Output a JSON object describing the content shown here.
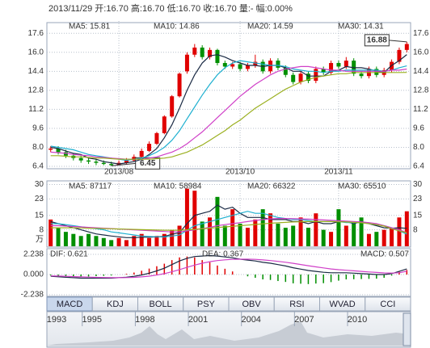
{
  "header": "2013/11/29 开:16.70 高:16.70 低:16.70 收:16.70 量:- 幅:0.00%",
  "chart_data": [
    {
      "type": "candlestick",
      "categories": [
        null,
        null,
        null,
        null,
        null,
        null,
        null,
        null,
        null,
        "2013/08",
        null,
        null,
        null,
        null,
        null,
        null,
        null,
        null,
        null,
        null,
        null,
        null,
        null,
        null,
        null,
        "2013/10",
        null,
        null,
        null,
        null,
        null,
        null,
        null,
        null,
        null,
        null,
        null,
        null,
        "2013/11",
        null,
        null,
        null,
        null,
        null,
        null,
        null,
        null,
        null
      ],
      "open": [
        7.8,
        7.9,
        7.6,
        7.3,
        7.1,
        6.9,
        6.8,
        6.7,
        6.6,
        6.5,
        6.7,
        6.9,
        7.2,
        7.7,
        8.3,
        9.2,
        10.6,
        12.3,
        14.4,
        15.8,
        16.4,
        15.6,
        16.2,
        15.1,
        14.8,
        15.0,
        14.6,
        14.9,
        15.2,
        14.4,
        15.3,
        14.7,
        14.1,
        13.5,
        14.2,
        13.6,
        14.6,
        14.3,
        15.1,
        14.8,
        15.3,
        14.2,
        14.0,
        14.6,
        14.1,
        14.5,
        15.2,
        16.2
      ],
      "high": [
        8.1,
        8.1,
        7.8,
        7.5,
        7.3,
        7.1,
        7.0,
        6.9,
        6.8,
        6.9,
        7.1,
        7.4,
        7.9,
        8.5,
        9.3,
        10.7,
        12.4,
        14.3,
        16.0,
        16.7,
        16.6,
        16.4,
        16.3,
        15.3,
        15.2,
        15.2,
        15.1,
        15.8,
        15.4,
        15.5,
        15.5,
        14.9,
        14.3,
        14.4,
        14.4,
        14.8,
        14.8,
        15.3,
        15.3,
        15.6,
        15.5,
        14.4,
        14.8,
        14.8,
        14.7,
        15.4,
        16.4,
        16.88
      ],
      "low": [
        7.6,
        7.4,
        7.1,
        6.9,
        6.7,
        6.6,
        6.5,
        6.5,
        6.45,
        6.5,
        6.6,
        6.8,
        7.1,
        7.6,
        8.2,
        9.1,
        10.5,
        12.2,
        14.2,
        15.6,
        15.4,
        15.4,
        14.9,
        14.6,
        14.6,
        14.4,
        14.4,
        14.7,
        14.2,
        14.2,
        14.5,
        13.9,
        13.3,
        13.3,
        13.4,
        13.4,
        14.1,
        14.1,
        14.6,
        14.6,
        14.0,
        13.8,
        13.8,
        13.9,
        13.9,
        14.3,
        15.0,
        16.0
      ],
      "close": [
        7.9,
        7.6,
        7.3,
        7.1,
        6.9,
        6.8,
        6.7,
        6.6,
        6.5,
        6.7,
        6.9,
        7.2,
        7.7,
        8.3,
        9.2,
        10.6,
        12.3,
        14.2,
        15.8,
        16.4,
        15.6,
        16.2,
        15.1,
        14.8,
        15.0,
        14.6,
        14.9,
        15.2,
        14.4,
        15.3,
        14.7,
        14.1,
        13.5,
        14.2,
        13.6,
        14.6,
        14.3,
        15.1,
        14.8,
        15.3,
        14.2,
        14.0,
        14.6,
        14.1,
        14.5,
        15.2,
        16.2,
        16.7
      ],
      "up_color": "#e00000",
      "down_color": "#008f00",
      "tick_color": "#cc0000",
      "series": [
        {
          "name": "MA5: 15.81",
          "color": "#1a2a44",
          "values": [
            8.0,
            7.9,
            7.7,
            7.5,
            7.4,
            7.1,
            7.0,
            6.8,
            6.7,
            6.6,
            6.7,
            6.8,
            7.0,
            7.4,
            7.9,
            8.8,
            9.9,
            11.3,
            12.8,
            14.1,
            15.1,
            15.7,
            15.8,
            15.6,
            15.3,
            15.1,
            14.9,
            14.9,
            14.8,
            14.9,
            14.9,
            14.7,
            14.4,
            14.4,
            14.0,
            14.0,
            14.0,
            14.4,
            14.5,
            14.8,
            14.7,
            14.7,
            14.6,
            14.4,
            14.3,
            14.9,
            15.3,
            15.81
          ]
        },
        {
          "name": "MA10: 14.86",
          "color": "#1fb0d0",
          "values": [
            8.1,
            8.0,
            7.9,
            7.8,
            7.6,
            7.4,
            7.3,
            7.2,
            7.1,
            7.0,
            6.9,
            7.0,
            7.1,
            7.3,
            7.6,
            8.0,
            8.6,
            9.4,
            10.4,
            11.4,
            12.4,
            13.3,
            14.1,
            14.7,
            15.1,
            15.3,
            15.2,
            15.1,
            15.0,
            14.9,
            14.9,
            14.8,
            14.6,
            14.5,
            14.4,
            14.4,
            14.3,
            14.4,
            14.4,
            14.5,
            14.5,
            14.5,
            14.5,
            14.5,
            14.4,
            14.5,
            14.7,
            14.86
          ]
        },
        {
          "name": "MA20: 14.59",
          "color": "#d040c8",
          "values": [
            7.6,
            7.55,
            7.5,
            7.4,
            7.35,
            7.3,
            7.2,
            7.15,
            7.1,
            7.05,
            7.0,
            7.0,
            7.0,
            7.1,
            7.2,
            7.4,
            7.6,
            7.9,
            8.3,
            8.8,
            9.3,
            9.9,
            10.5,
            11.1,
            11.7,
            12.3,
            12.8,
            13.3,
            13.7,
            14.1,
            14.4,
            14.6,
            14.7,
            14.8,
            14.8,
            14.7,
            14.6,
            14.5,
            14.5,
            14.4,
            14.4,
            14.4,
            14.4,
            14.4,
            14.4,
            14.5,
            14.5,
            14.59
          ]
        },
        {
          "name": "MA30: 14.31",
          "color": "#9bb020",
          "values": [
            7.3,
            7.3,
            7.25,
            7.2,
            7.2,
            7.15,
            7.1,
            7.1,
            7.05,
            7.0,
            7.0,
            7.0,
            7.0,
            7.0,
            7.05,
            7.1,
            7.2,
            7.4,
            7.6,
            7.9,
            8.2,
            8.6,
            9.0,
            9.4,
            9.9,
            10.3,
            10.8,
            11.3,
            11.7,
            12.1,
            12.5,
            12.9,
            13.2,
            13.5,
            13.7,
            13.9,
            14.0,
            14.1,
            14.2,
            14.2,
            14.3,
            14.3,
            14.3,
            14.3,
            14.3,
            14.3,
            14.3,
            14.31
          ]
        }
      ],
      "annotations": [
        {
          "value": 16.88,
          "label": "16.88"
        },
        {
          "value": 6.45,
          "label": "6.45"
        }
      ],
      "ylim": [
        6.2,
        18.5
      ],
      "yticks": [
        17.6,
        {
          "value": 16,
          "label": "16.0"
        },
        14.4,
        12.8,
        11.2,
        9.6,
        {
          "value": 8,
          "label": "8.0"
        },
        6.4
      ],
      "grid": true
    },
    {
      "type": "bar",
      "values": [
        13,
        9,
        7,
        6,
        5,
        6,
        5,
        4,
        3,
        4,
        3,
        5,
        6,
        4,
        5,
        6,
        8,
        10,
        28,
        27,
        12,
        14,
        24,
        10,
        18,
        11,
        9,
        13,
        18,
        16,
        11,
        9,
        10,
        14,
        9,
        16,
        8,
        7,
        18,
        10,
        11,
        14,
        6,
        7,
        8,
        9,
        14,
        17
      ],
      "series": [
        {
          "name": "MA5: 87117",
          "color": "#1a2a44",
          "values": [
            12,
            11,
            10,
            9,
            8,
            7,
            6,
            5.5,
            5,
            4.6,
            4.2,
            4.2,
            4.4,
            4.4,
            4.6,
            4.8,
            5.8,
            6.6,
            11,
            15,
            16,
            17,
            20,
            18,
            19,
            16,
            14,
            14,
            14,
            13,
            13,
            13,
            12,
            12,
            11,
            12,
            11,
            11,
            12,
            12,
            11,
            12,
            11,
            10,
            9,
            8.8,
            9,
            8.7
          ]
        },
        {
          "name": "MA10: 58984",
          "color": "#1fb0d0",
          "values": [
            11,
            11,
            10.5,
            10,
            9.5,
            9,
            8.5,
            8,
            7,
            6.5,
            6,
            5.5,
            5,
            4.8,
            4.6,
            4.5,
            5,
            5.5,
            7.8,
            10,
            11,
            12,
            13,
            14,
            15,
            16,
            17,
            16,
            16,
            15,
            14,
            13.5,
            13,
            13,
            12.5,
            12,
            12,
            12,
            12,
            11.5,
            11.5,
            11.5,
            11,
            10.5,
            10,
            9,
            7.5,
            5.9
          ]
        },
        {
          "name": "MA20: 66322",
          "color": "#d040c8",
          "values": [
            10,
            10,
            9.8,
            9.6,
            9.4,
            9.2,
            9,
            8.8,
            8.6,
            8.4,
            8.2,
            8,
            7.8,
            7.6,
            7.4,
            7.2,
            7,
            7,
            7.5,
            8,
            8.6,
            9.2,
            10,
            10.5,
            11,
            11.5,
            12,
            12.5,
            13,
            13.3,
            13.5,
            13.5,
            13.4,
            13.3,
            13.2,
            13,
            12.8,
            12.6,
            12.4,
            12.2,
            12,
            11.8,
            11.5,
            11,
            10,
            9,
            8,
            6.6
          ]
        },
        {
          "name": "MA30: 65510",
          "color": "#9bb020",
          "values": [
            9,
            9,
            9,
            9,
            8.9,
            8.8,
            8.7,
            8.6,
            8.5,
            8.4,
            8.3,
            8.2,
            8.1,
            8,
            7.9,
            7.8,
            7.8,
            7.8,
            8,
            8.2,
            8.5,
            8.8,
            9.1,
            9.4,
            9.7,
            10,
            10.3,
            10.6,
            10.9,
            11.2,
            11.4,
            11.6,
            11.8,
            11.9,
            12,
            12,
            12,
            12,
            11.9,
            11.8,
            11.6,
            11.4,
            11,
            10.5,
            9.8,
            8.5,
            7.5,
            6.6
          ]
        }
      ],
      "y_unit": "万",
      "ylim": [
        0,
        31
      ],
      "yticks": [
        30,
        23,
        15,
        8
      ],
      "grid": true
    },
    {
      "type": "macd",
      "values": [
        -0.1,
        -0.16,
        -0.2,
        -0.24,
        -0.28,
        -0.22,
        -0.18,
        -0.14,
        -0.1,
        0,
        0.08,
        0.22,
        0.42,
        0.66,
        0.92,
        1.2,
        1.6,
        1.9,
        2.0,
        1.9,
        1.6,
        1.36,
        1.0,
        0.64,
        0.34,
        0,
        -0.2,
        -0.36,
        -0.54,
        -0.6,
        -0.72,
        -0.82,
        -0.98,
        -1.02,
        -1.06,
        -1.0,
        -0.96,
        -0.84,
        -0.68,
        -0.54,
        -0.52,
        -0.5,
        -0.48,
        -0.46,
        -0.36,
        -0.12,
        0.3,
        0.507
      ],
      "values_name": "MACD: 0.507",
      "series": [
        {
          "name": "DIF: 0.621",
          "color": "#1a2a44",
          "values": [
            -0.2,
            -0.25,
            -0.3,
            -0.35,
            -0.4,
            -0.4,
            -0.4,
            -0.4,
            -0.4,
            -0.35,
            -0.3,
            -0.2,
            -0.05,
            0.15,
            0.4,
            0.7,
            1.1,
            1.5,
            1.8,
            2.0,
            2.05,
            2.1,
            2.05,
            1.95,
            1.85,
            1.7,
            1.6,
            1.5,
            1.35,
            1.25,
            1.1,
            0.95,
            0.75,
            0.6,
            0.45,
            0.35,
            0.25,
            0.2,
            0.2,
            0.2,
            0.15,
            0.1,
            0.05,
            0.0,
            0.0,
            0.1,
            0.35,
            0.621
          ]
        },
        {
          "name": "DEA: 0.367",
          "color": "#d040c8",
          "values": [
            -0.15,
            -0.17,
            -0.2,
            -0.23,
            -0.26,
            -0.29,
            -0.31,
            -0.33,
            -0.35,
            -0.35,
            -0.34,
            -0.31,
            -0.26,
            -0.18,
            -0.06,
            0.1,
            0.3,
            0.55,
            0.8,
            1.05,
            1.25,
            1.42,
            1.55,
            1.63,
            1.68,
            1.7,
            1.7,
            1.68,
            1.62,
            1.55,
            1.46,
            1.36,
            1.24,
            1.11,
            0.98,
            0.85,
            0.73,
            0.62,
            0.54,
            0.47,
            0.41,
            0.35,
            0.29,
            0.23,
            0.18,
            0.16,
            0.2,
            0.367
          ]
        }
      ],
      "up_color": "#e00000",
      "down_color": "#008f00",
      "ylim": [
        -2.238,
        2.238
      ],
      "yticks": [
        2.238,
        {
          "value": 0,
          "label": "0.000"
        },
        -2.238
      ],
      "grid": true
    }
  ],
  "tabs": [
    "MACD",
    "KDJ",
    "BOLL",
    "PSY",
    "OBV",
    "RSI",
    "WVAD",
    "CCI"
  ],
  "timeline": {
    "years": [
      1993,
      1995,
      1998,
      2001,
      2004,
      2007,
      2010
    ]
  }
}
